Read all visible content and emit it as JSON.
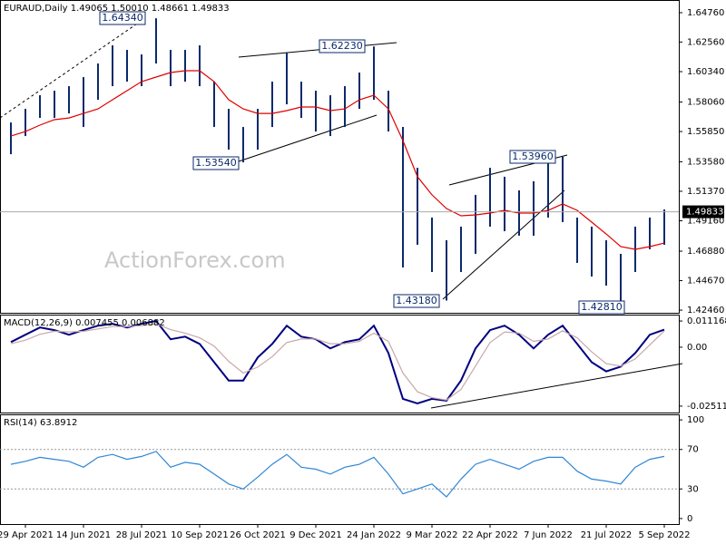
{
  "chart_data": [
    {
      "type": "range-bar",
      "title": "EURAUD,Daily  1.49065 1.50010 1.48661 1.49833",
      "watermark": "ActionForex.com",
      "color": "#0b2a6b",
      "categories": [
        null,
        "29 Apr 2021",
        null,
        null,
        null,
        "14 Jun 2021",
        null,
        null,
        null,
        "28 Jul 2021",
        null,
        null,
        null,
        "10 Sep 2021",
        null,
        null,
        null,
        "26 Oct 2021",
        null,
        null,
        null,
        "9 Dec 2021",
        null,
        null,
        null,
        "24 Jan 2022",
        null,
        null,
        null,
        "9 Mar 2022",
        null,
        null,
        null,
        "22 Apr 2022",
        null,
        null,
        null,
        "7 Jun 2022",
        null,
        null,
        null,
        "21 Jul 2022",
        null,
        null,
        null,
        "5 Sep 2022"
      ],
      "high": [
        1.5653,
        1.5755,
        1.5857,
        1.5891,
        1.5925,
        1.5993,
        1.6095,
        1.6231,
        1.6197,
        1.6163,
        1.6434,
        1.6197,
        1.6197,
        1.6231,
        1.5959,
        1.5755,
        1.5619,
        1.5755,
        1.5959,
        1.618,
        1.5959,
        1.5891,
        1.5857,
        1.5925,
        1.6027,
        1.6223,
        1.5891,
        1.5619,
        1.5313,
        1.494,
        1.477,
        1.4872,
        1.511,
        1.5313,
        1.5246,
        1.5144,
        1.5212,
        1.5381,
        1.5396,
        1.494,
        1.4872,
        1.477,
        1.4668,
        1.4872,
        1.494,
        1.5001
      ],
      "low": [
        1.5415,
        1.5551,
        1.5687,
        1.5687,
        1.5721,
        1.5619,
        1.5823,
        1.5925,
        1.5959,
        1.5925,
        1.6095,
        1.5925,
        1.5959,
        1.5925,
        1.5619,
        1.5449,
        1.5354,
        1.5449,
        1.5619,
        1.5789,
        1.5687,
        1.5585,
        1.5551,
        1.5619,
        1.5755,
        1.5823,
        1.5585,
        1.4566,
        1.4736,
        1.4532,
        1.4318,
        1.4532,
        1.4668,
        1.4872,
        1.4838,
        1.4804,
        1.4804,
        1.494,
        1.4906,
        1.46,
        1.4498,
        1.443,
        1.4281,
        1.4532,
        1.4702,
        1.4736
      ],
      "lines": [
        {
          "color": "#e00000",
          "values": [
            1.5551,
            1.5585,
            1.5633,
            1.5674,
            1.5687,
            1.5721,
            1.5755,
            1.5823,
            1.5891,
            1.5959,
            1.5993,
            1.6027,
            1.6041,
            1.6041,
            1.5959,
            1.5823,
            1.5755,
            1.5721,
            1.5721,
            1.5742,
            1.5769,
            1.5769,
            1.5742,
            1.5755,
            1.5823,
            1.5857,
            1.5755,
            1.5517,
            1.5246,
            1.511,
            1.5008,
            1.4953,
            1.496,
            1.4974,
            1.4994,
            1.4974,
            1.4974,
            1.4994,
            1.5042,
            1.4994,
            1.4906,
            1.4817,
            1.4722,
            1.4702,
            1.4722,
            1.4749
          ]
        }
      ],
      "last_price": 1.49833,
      "annotations": [
        "1.64340",
        "1.62230",
        "1.53540",
        "1.43180",
        "1.53960",
        "1.42810"
      ],
      "ylim": [
        1.4226,
        1.6571
      ],
      "yticks": [
        {
          "value": 1.6476,
          "label": "1.64760"
        },
        {
          "value": 1.6256,
          "label": "1.62560"
        },
        {
          "value": 1.6034,
          "label": "1.60340"
        },
        {
          "value": 1.5806,
          "label": "1.58060"
        },
        {
          "value": 1.5585,
          "label": "1.55850"
        },
        {
          "value": 1.5358,
          "label": "1.53580"
        },
        {
          "value": 1.5137,
          "label": "1.51370"
        },
        {
          "value": 1.4916,
          "label": "1.49160"
        },
        {
          "value": 1.4688,
          "label": "1.46880"
        },
        {
          "value": 1.4467,
          "label": "1.44670"
        },
        {
          "value": 1.4246,
          "label": "1.42460"
        }
      ]
    },
    {
      "type": "line",
      "title": "MACD(12,26,9) 0.007455 0.006882",
      "lines": [
        {
          "color": "#000080",
          "values": [
            0.0022,
            0.0053,
            0.0084,
            0.0073,
            0.0053,
            0.0073,
            0.0092,
            0.01,
            0.0084,
            0.01,
            0.0112,
            0.0034,
            0.0045,
            0.0014,
            -0.0064,
            -0.0142,
            -0.0142,
            -0.0044,
            0.0014,
            0.0092,
            0.0045,
            0.0034,
            -0.0005,
            0.0022,
            0.0034,
            0.0092,
            -0.0025,
            -0.022,
            -0.024,
            -0.022,
            -0.0228,
            -0.0142,
            -0.0005,
            0.0073,
            0.0092,
            0.0053,
            -0.0005,
            0.0053,
            0.0092,
            0.0014,
            -0.0064,
            -0.0103,
            -0.0083,
            -0.0025,
            0.0053,
            0.0075
          ]
        },
        {
          "color": "#c8a8a8",
          "values": [
            0.0015,
            0.003,
            0.0055,
            0.0068,
            0.0065,
            0.0068,
            0.0078,
            0.0088,
            0.0088,
            0.0092,
            0.01,
            0.0075,
            0.006,
            0.004,
            0.0005,
            -0.006,
            -0.011,
            -0.0085,
            -0.004,
            0.002,
            0.0035,
            0.0035,
            0.0015,
            0.0015,
            0.0025,
            0.006,
            0.0025,
            -0.011,
            -0.019,
            -0.0215,
            -0.0225,
            -0.018,
            -0.008,
            0.002,
            0.0065,
            0.006,
            0.0025,
            0.0035,
            0.007,
            0.004,
            -0.002,
            -0.007,
            -0.008,
            -0.005,
            0.001,
            0.0069
          ]
        }
      ],
      "ylim": [
        -0.02785,
        0.0139
      ],
      "yticks": [
        0.011168,
        {
          "value": 0,
          "label": "0.00"
        },
        -0.025117
      ]
    },
    {
      "type": "line",
      "title": "RSI(14) 63.8912",
      "lines": [
        {
          "color": "#2f86d6",
          "values": [
            55,
            58,
            62,
            60,
            58,
            52,
            62,
            65,
            60,
            63,
            68,
            52,
            57,
            55,
            45,
            35,
            30,
            42,
            55,
            65,
            52,
            50,
            45,
            52,
            55,
            62,
            45,
            25,
            30,
            35,
            22,
            40,
            55,
            60,
            55,
            50,
            58,
            62,
            62,
            48,
            40,
            38,
            35,
            52,
            60,
            63
          ]
        }
      ],
      "ylim": [
        -5.6,
        105.6
      ],
      "yticks": [
        100,
        70,
        30,
        0
      ]
    }
  ]
}
